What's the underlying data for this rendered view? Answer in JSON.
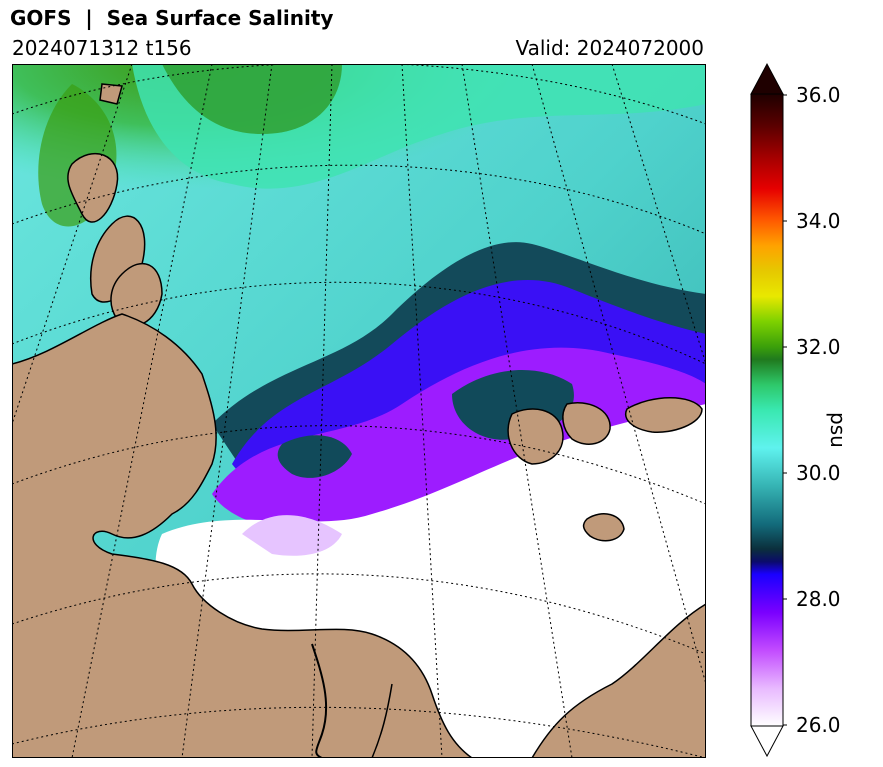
{
  "header": {
    "title": "GOFS  |  Sea Surface Salinity",
    "run": "2024071312 t156",
    "valid": "Valid: 2024072000"
  },
  "colorbar": {
    "label": "psu",
    "ticks": [
      "36.0",
      "34.0",
      "32.0",
      "30.0",
      "28.0",
      "26.0"
    ],
    "min": 26.0,
    "max": 36.0,
    "extend": "both"
  },
  "map": {
    "variable": "Sea Surface Salinity",
    "projection": "polar-stereographic",
    "gridlines": "dotted",
    "colors": {
      "land": "#c09a7a",
      "coast": "#000000",
      "fresh": "#ffffff",
      "violet": "#a300ff",
      "blue": "#2a00ff",
      "teal_dark": "#0e4a5c",
      "cyan": "#5ef0ee",
      "green": "#38df9f",
      "olive": "#3c9e14"
    }
  }
}
